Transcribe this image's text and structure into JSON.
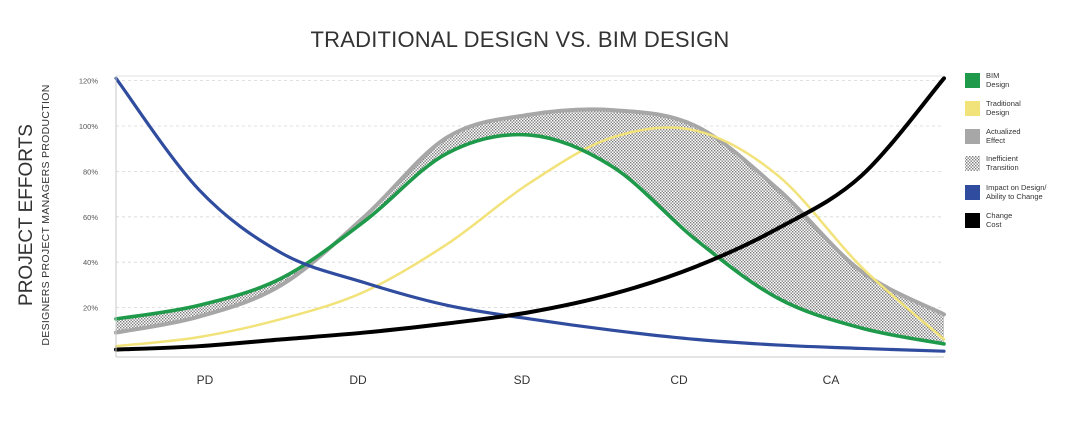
{
  "chart_data": {
    "type": "line",
    "title": "TRADITIONAL DESIGN VS. BIM DESIGN",
    "ylabel": "PROJECT EFFORTS",
    "ylabel_sub": [
      "DESIGNERS",
      "PROJECT MANAGERS",
      "PRODUCTION"
    ],
    "categories": [
      "PD",
      "DD",
      "SD",
      "CD",
      "CA"
    ],
    "yticks": [
      "20%",
      "40%",
      "60%",
      "80%",
      "100%",
      "120%"
    ],
    "ylim": [
      0,
      120
    ],
    "grid": true,
    "legend_position": "right",
    "x": [
      0,
      0.5,
      1,
      1.5,
      2,
      2.5,
      3,
      3.5,
      4,
      4.5,
      5
    ],
    "series": [
      {
        "name": "BIM Design",
        "color": "#1e9a4a",
        "values": [
          15,
          21,
          33,
          58,
          88,
          96,
          82,
          50,
          24,
          11,
          4
        ]
      },
      {
        "name": "Traditional Design",
        "color": "#f2e27a",
        "values": [
          3,
          7,
          15,
          27,
          48,
          75,
          95,
          98,
          78,
          38,
          6
        ]
      },
      {
        "name": "Actualized Effect",
        "color": "#a7a7a7",
        "values": [
          9,
          16,
          30,
          60,
          95,
          105,
          107,
          100,
          72,
          36,
          17
        ]
      },
      {
        "name": "Impact on Design/ Ability to Change",
        "color": "#2f4c9e",
        "values": [
          121,
          72,
          44,
          31,
          21,
          15,
          10,
          6,
          3.5,
          2,
          0.8
        ]
      },
      {
        "name": "Change Cost",
        "color": "#000000",
        "values": [
          1.5,
          3,
          6,
          9,
          13,
          18,
          26,
          38,
          55,
          78,
          121
        ]
      }
    ],
    "legend": [
      {
        "label": "BIM\nDesign",
        "color": "#1e9a4a",
        "style": "solid"
      },
      {
        "label": "Traditional\nDesign",
        "color": "#f2e27a",
        "style": "solid"
      },
      {
        "label": "Actualized\nEffect",
        "color": "#a7a7a7",
        "style": "solid"
      },
      {
        "label": "Inefficient\nTransition",
        "color": "#8c8c8c",
        "style": "hatch"
      },
      {
        "label": "Impact on Design/\nAbility to Change",
        "color": "#2f4c9e",
        "style": "solid"
      },
      {
        "label": "Change\nCost",
        "color": "#000000",
        "style": "solid"
      }
    ]
  }
}
